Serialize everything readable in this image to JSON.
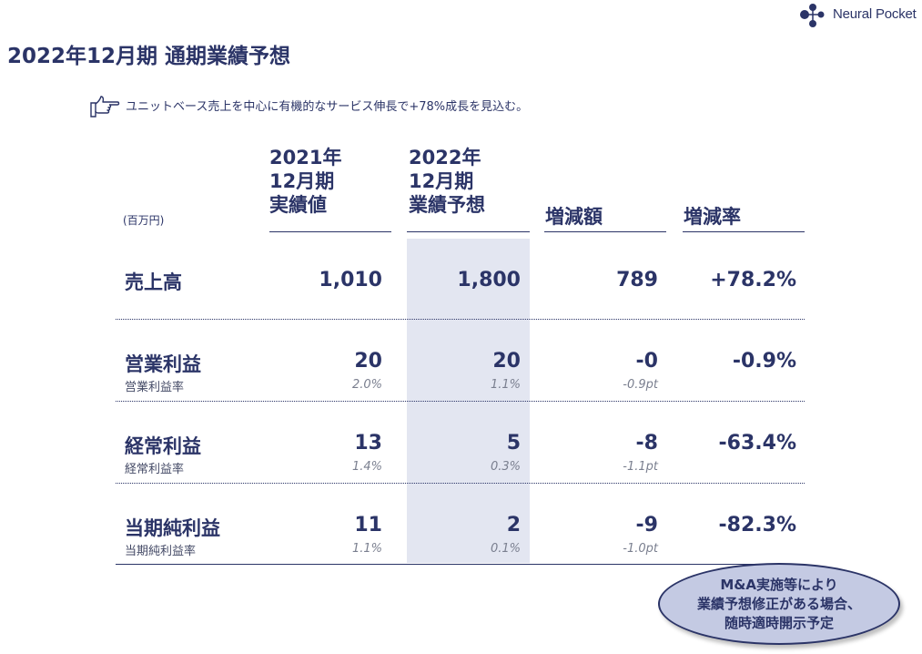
{
  "brand": {
    "name": "Neural Pocket"
  },
  "title": "2022年12月期 通期業績予想",
  "lead": "ユニットベース売上を中心に有機的なサービス伸長で+78%成長を見込む。",
  "table": {
    "unit": "(百万円)",
    "headers": {
      "prev": "2021年\n12月期\n実績値",
      "curr": "2022年\n12月期\n業績予想",
      "diff": "増減額",
      "rate": "増減率"
    },
    "rows": [
      {
        "label": "売上高",
        "sub": "",
        "prev": "1,010",
        "curr": "1,800",
        "diff": "789",
        "rate": "+78.2%",
        "prev_sub": "",
        "curr_sub": "",
        "diff_sub": ""
      },
      {
        "label": "営業利益",
        "sub": "営業利益率",
        "prev": "20",
        "curr": "20",
        "diff": "-0",
        "rate": "-0.9%",
        "prev_sub": "2.0%",
        "curr_sub": "1.1%",
        "diff_sub": "-0.9pt"
      },
      {
        "label": "経常利益",
        "sub": "経常利益率",
        "prev": "13",
        "curr": "5",
        "diff": "-8",
        "rate": "-63.4%",
        "prev_sub": "1.4%",
        "curr_sub": "0.3%",
        "diff_sub": "-1.1pt"
      },
      {
        "label": "当期純利益",
        "sub": "当期純利益率",
        "prev": "11",
        "curr": "2",
        "diff": "-9",
        "rate": "-82.3%",
        "prev_sub": "1.1%",
        "curr_sub": "0.1%",
        "diff_sub": "-1.0pt"
      }
    ]
  },
  "note": "M&A実施等により\n業績予想修正がある場合、\n随時適時開示予定",
  "colors": {
    "primary": "#2b3467",
    "highlight": "#e3e6f1",
    "oval": "#c4cae3"
  }
}
